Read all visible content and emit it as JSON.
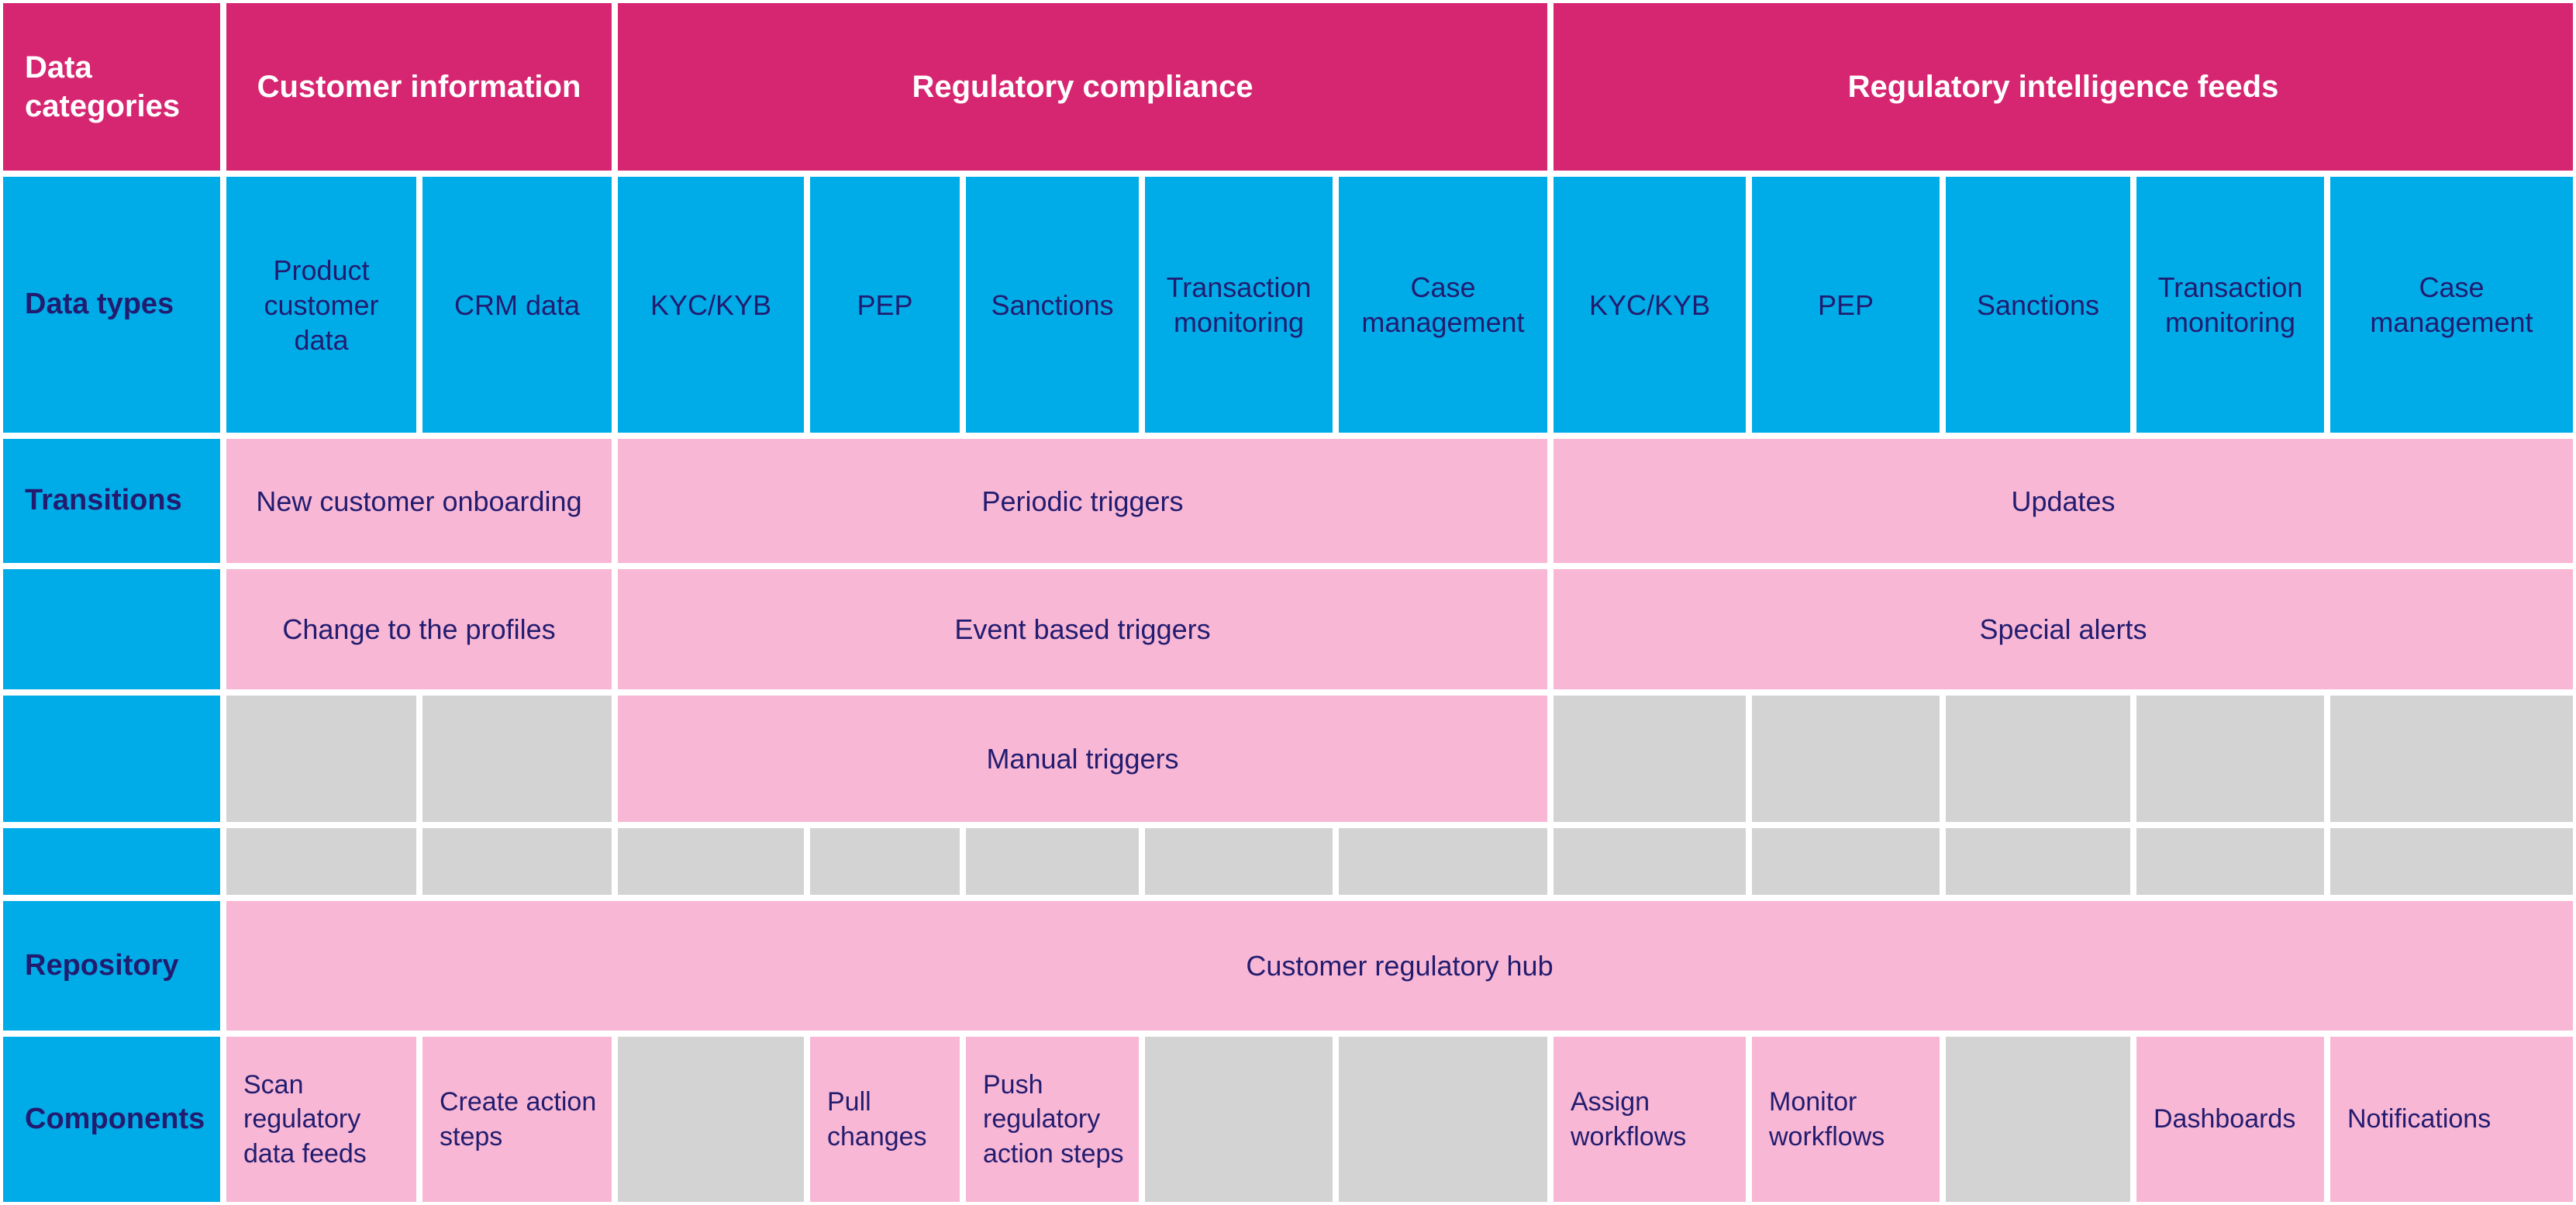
{
  "title_row": {
    "data_categories": "Data categories",
    "customer_information": "Customer information",
    "regulatory_compliance": "Regulatory compliance",
    "regulatory_intelligence_feeds": "Regulatory intelligence feeds"
  },
  "data_types": {
    "label": "Data types",
    "cells": [
      "Product customer data",
      "CRM data",
      "KYC/KYB",
      "PEP",
      "Sanctions",
      "Transaction monitoring",
      "Case management",
      "KYC/KYB",
      "PEP",
      "Sanctions",
      "Transaction monitoring",
      "Case management"
    ]
  },
  "transitions": {
    "label": "Transitions",
    "row1": [
      "New customer onboarding",
      "Periodic triggers",
      "Updates"
    ],
    "row2": [
      "Change to the profiles",
      "Event based triggers",
      "Special alerts"
    ],
    "manual_triggers": "Manual triggers"
  },
  "repository": {
    "label": "Repository",
    "hub": "Customer regulatory hub"
  },
  "components": {
    "label": "Components",
    "cells": [
      "Scan regulatory data feeds",
      "Create action steps",
      "Pull changes",
      "Push regulatory action steps",
      "Assign workflows",
      "Monitor workflows",
      "Dashboards",
      "Notifications"
    ]
  },
  "colors": {
    "magenta": "#D62671",
    "blue": "#00ACE8",
    "pink": "#F8B7D4",
    "gray": "#D3D3D3",
    "text_navy": "#221C70",
    "white": "#FFFFFF"
  }
}
